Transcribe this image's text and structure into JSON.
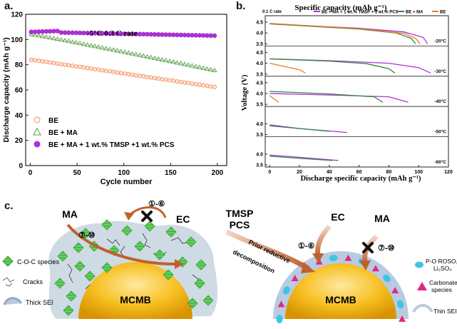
{
  "panels": {
    "a": {
      "letter": "a."
    },
    "b": {
      "letter": "b."
    },
    "c": {
      "letter": "c."
    }
  },
  "chart_data": [
    {
      "id": "a",
      "type": "scatter",
      "title": "",
      "annotation": "-5°C    0.3 C rate",
      "xlabel": "Cycle number",
      "ylabel": "Discharge capacity (mAh g⁻¹)",
      "xlim": [
        -5,
        210
      ],
      "ylim": [
        0,
        120
      ],
      "xticks": [
        0,
        50,
        100,
        150,
        200
      ],
      "yticks": [
        0,
        20,
        40,
        60,
        80,
        100,
        120
      ],
      "legend_position": "bottom-left",
      "series": [
        {
          "name": "BE",
          "marker": "circle-open",
          "color": "#f08a55",
          "x": [
            1,
            200
          ],
          "y": [
            84,
            62
          ]
        },
        {
          "name": "BE + MA",
          "marker": "triangle-open",
          "color": "#5a9a48",
          "x": [
            1,
            200
          ],
          "y": [
            104,
            75
          ]
        },
        {
          "name": "BE + MA + 1 wt.% TMSP +1 wt.% PCS",
          "marker": "circle-filled",
          "color": "#b030d8",
          "x": [
            1,
            200
          ],
          "y": [
            106,
            103
          ]
        }
      ]
    },
    {
      "id": "b",
      "type": "line",
      "title": "Specific capacity (mAh g⁻¹)",
      "xlabel": "Discharge specific capacity (mAh g⁻¹)",
      "ylabel": "Voltage (V)",
      "xlim": [
        -3,
        120
      ],
      "xticks": [
        0,
        20,
        40,
        60,
        80,
        100,
        120
      ],
      "rate_label": "0.1 C rate",
      "legend": [
        {
          "name": "BE + MA + 1 wt.% TMSP + 1 wt.% PCS",
          "color": "#b030d8"
        },
        {
          "name": "BE + MA",
          "color": "#2e8a3a"
        },
        {
          "name": "BE",
          "color": "#ee7a22"
        }
      ],
      "subplots": [
        {
          "temp": "-20°C",
          "ylim": [
            3.5,
            4.5
          ],
          "yticks": [
            "4.5",
            "4.0",
            "3.5"
          ],
          "series": [
            {
              "name": "BE + MA + 1 wt.% TMSP + 1 wt.% PCS",
              "x": [
                0,
                30,
                60,
                90,
                103,
                106
              ],
              "y": [
                4.42,
                4.32,
                4.22,
                4.05,
                3.8,
                3.5
              ]
            },
            {
              "name": "BE + MA",
              "x": [
                0,
                30,
                60,
                85,
                95,
                98
              ],
              "y": [
                4.42,
                4.3,
                4.18,
                4.0,
                3.75,
                3.5
              ]
            },
            {
              "name": "BE",
              "x": [
                0,
                30,
                60,
                90,
                98,
                101
              ],
              "y": [
                4.44,
                4.32,
                4.2,
                3.98,
                3.75,
                3.5
              ]
            }
          ]
        },
        {
          "temp": "-30°C",
          "ylim": [
            3.5,
            4.5
          ],
          "yticks": [
            "4.5",
            "4.0",
            "3.5"
          ],
          "series": [
            {
              "name": "BE + MA + 1 wt.% TMSP + 1 wt.% PCS",
              "x": [
                0,
                40,
                80,
                100,
                108
              ],
              "y": [
                4.2,
                4.12,
                4.0,
                3.8,
                3.55
              ]
            },
            {
              "name": "BE + MA",
              "x": [
                0,
                40,
                65,
                80,
                84
              ],
              "y": [
                4.2,
                4.1,
                3.98,
                3.75,
                3.55
              ]
            },
            {
              "name": "BE",
              "x": [
                0,
                10,
                20,
                24
              ],
              "y": [
                4.0,
                3.85,
                3.7,
                3.55
              ]
            }
          ]
        },
        {
          "temp": "-40°C",
          "ylim": [
            3.5,
            4.5
          ],
          "yticks": [
            "4.5",
            "4.0",
            "3.5"
          ],
          "series": [
            {
              "name": "BE + MA + 1 wt.% TMSP + 1 wt.% PCS",
              "x": [
                0,
                40,
                80,
                93
              ],
              "y": [
                4.0,
                3.93,
                3.85,
                3.6
              ]
            },
            {
              "name": "BE + MA",
              "x": [
                0,
                40,
                70,
                76
              ],
              "y": [
                4.1,
                3.98,
                3.85,
                3.6
              ]
            },
            {
              "name": "BE",
              "x": [
                0,
                3,
                6
              ],
              "y": [
                3.9,
                3.75,
                3.6
              ]
            }
          ]
        },
        {
          "temp": "-50°C",
          "ylim": [
            3.5,
            4.5
          ],
          "yticks": [
            "4.0",
            "3.5"
          ],
          "series": [
            {
              "name": "BE + MA + 1 wt.% TMSP + 1 wt.% PCS",
              "x": [
                0,
                25,
                52
              ],
              "y": [
                3.9,
                3.75,
                3.6
              ]
            },
            {
              "name": "BE + MA",
              "x": [
                0,
                20,
                40
              ],
              "y": [
                3.95,
                3.78,
                3.65
              ]
            }
          ]
        },
        {
          "temp": "-60°C",
          "ylim": [
            3.5,
            4.5
          ],
          "yticks": [
            "4.0",
            "3.5"
          ],
          "series": [
            {
              "name": "BE + MA + 1 wt.% TMSP + 1 wt.% PCS",
              "x": [
                0,
                20,
                46
              ],
              "y": [
                3.95,
                3.85,
                3.7
              ]
            },
            {
              "name": "BE + MA",
              "x": [
                0,
                20,
                42
              ],
              "y": [
                3.9,
                3.8,
                3.7
              ]
            }
          ]
        }
      ]
    }
  ],
  "schematic": {
    "left": {
      "additive": "MA",
      "additive_route": "⑦-⑩",
      "solvent": "EC",
      "solvent_route": "①-⑥",
      "core": "MCMB",
      "legend": [
        "C-O-C species",
        "Cracks",
        "Thick SEI"
      ]
    },
    "right": {
      "additive_1": "TMSP",
      "additive_2": "PCS",
      "process_1": "Prior reductive",
      "process_2": "decomposition",
      "solvent": "EC",
      "solvent_route": "①-⑥",
      "additive": "MA",
      "additive_route": "⑦-⑩",
      "core": "MCMB",
      "legend_species_1": "P-O ROSO₂Li",
      "legend_species_2": "Li₂SO₄",
      "legend_carbonate_1": "Carbonate",
      "legend_carbonate_2": "species",
      "legend_thin": "Thin SEI"
    }
  }
}
